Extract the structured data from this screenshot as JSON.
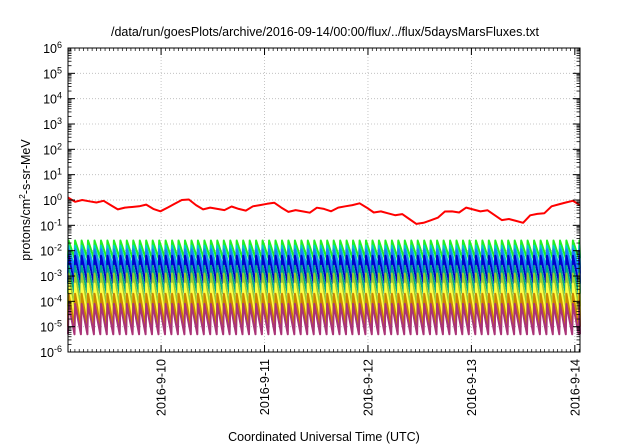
{
  "chart_data": {
    "type": "line",
    "title": "/data/run/goesPlots/archive/2016-09-14/00:00/flux/../flux/5daysMarsFluxes.txt",
    "xlabel": "Coordinated Universal Time (UTC)",
    "ylabel": {
      "base": "protons/cm",
      "sup": "2",
      "rest": "-s-sr-MeV"
    },
    "yscale": "log",
    "ylim_exp": [
      -6,
      6
    ],
    "ytick_base": "10",
    "ytick_exponents": [
      "6",
      "5",
      "4",
      "3",
      "2",
      "1",
      "0",
      "-1",
      "-2",
      "-3",
      "-4",
      "-5",
      "-6"
    ],
    "xlim_days": [
      9.1,
      14.05
    ],
    "x_ticks": [
      {
        "label": "2016-9-10",
        "day": 10
      },
      {
        "label": "2016-9-11",
        "day": 11
      },
      {
        "label": "2016-9-12",
        "day": 12
      },
      {
        "label": "2016-9-13",
        "day": 13
      },
      {
        "label": "2016-9-14",
        "day": 14
      }
    ],
    "grid": true,
    "sawtooth_period_days": 0.0625,
    "series": [
      {
        "color": "#ff0000",
        "values_exp": [
          0.1,
          0.0,
          -0.1,
          -0.2,
          -0.3,
          -0.25,
          -0.35,
          -0.3,
          0.0,
          -0.2,
          -0.3,
          -0.4,
          -0.35,
          -0.25,
          -0.15,
          -0.3,
          -0.4,
          -0.5,
          -0.35,
          -0.3,
          -0.2,
          -0.3,
          -0.45,
          -0.6,
          -0.75,
          -0.9,
          -0.7,
          -0.45,
          -0.3,
          -0.45,
          -0.6,
          -0.75,
          -0.9,
          -0.55,
          -0.25,
          -0.1,
          -0.2
        ]
      },
      {
        "color": "#22ee22",
        "peak_exp": -1.6,
        "trough_exp": -2.3
      },
      {
        "color": "#00cccc",
        "peak_exp": -1.8,
        "trough_exp": -2.7
      },
      {
        "color": "#2277ff",
        "peak_exp": -1.95,
        "trough_exp": -2.9
      },
      {
        "color": "#0000cc",
        "peak_exp": -2.2,
        "trough_exp": -3.3
      },
      {
        "color": "#00aa88",
        "peak_exp": -2.6,
        "trough_exp": -3.7
      },
      {
        "color": "#99cc33",
        "peak_exp": -2.9,
        "trough_exp": -4.2
      },
      {
        "color": "#ffff44",
        "peak_exp": -3.3,
        "trough_exp": -4.6
      },
      {
        "color": "#cc8800",
        "peak_exp": -3.7,
        "trough_exp": -5.0
      },
      {
        "color": "#aa3377",
        "peak_exp": -4.1,
        "trough_exp": -5.3
      }
    ]
  }
}
